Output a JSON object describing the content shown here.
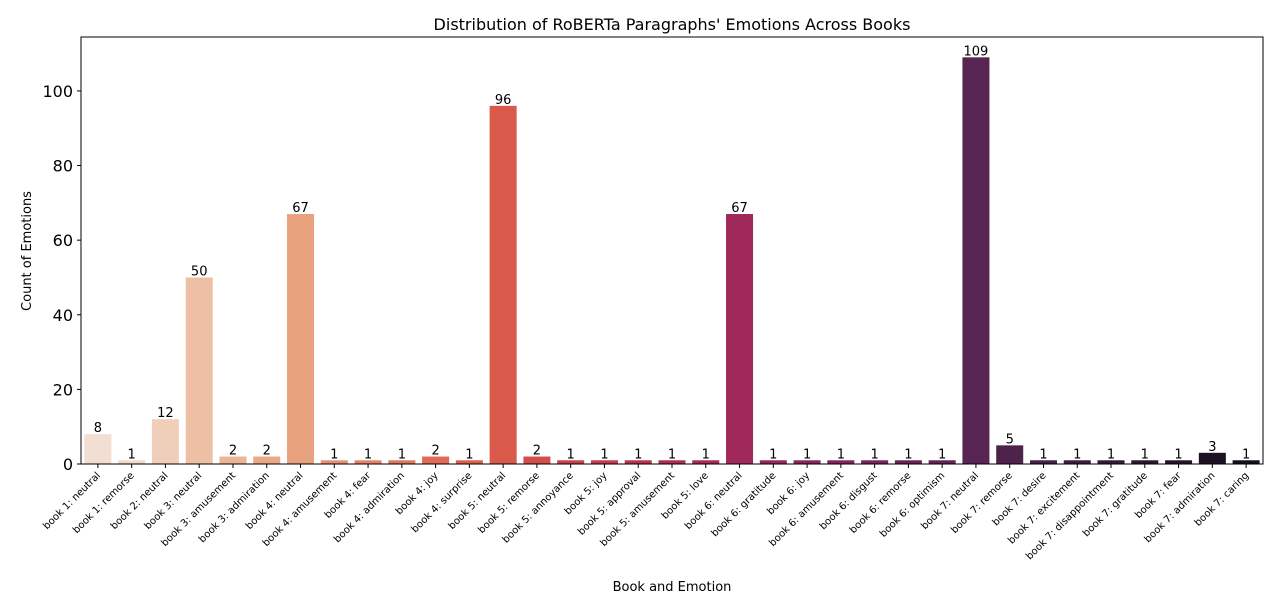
{
  "chart_data": {
    "type": "bar",
    "title": "Distribution of RoBERTa Paragraphs' Emotions Across Books",
    "xlabel": "Book and Emotion",
    "ylabel": "Count of Emotions",
    "ylim": [
      0,
      114.45
    ],
    "yticks": [
      0,
      20,
      40,
      60,
      80,
      100
    ],
    "grid": false,
    "categories": [
      "book 1: neutral",
      "book 1: remorse",
      "book 2: neutral",
      "book 3: neutral",
      "book 3: amusement",
      "book 3: admiration",
      "book 4: neutral",
      "book 4: amusement",
      "book 4: fear",
      "book 4: admiration",
      "book 4: joy",
      "book 4: surprise",
      "book 5: neutral",
      "book 5: remorse",
      "book 5: annoyance",
      "book 5: joy",
      "book 5: approval",
      "book 5: amusement",
      "book 5: love",
      "book 6: neutral",
      "book 6: gratitude",
      "book 6: joy",
      "book 6: amusement",
      "book 6: disgust",
      "book 6: remorse",
      "book 6: optimism",
      "book 7: neutral",
      "book 7: remorse",
      "book 7: desire",
      "book 7: excitement",
      "book 7: disappointment",
      "book 7: gratitude",
      "book 7: fear",
      "book 7: admiration",
      "book 7: caring"
    ],
    "values": [
      8,
      1,
      12,
      50,
      2,
      2,
      67,
      1,
      1,
      1,
      2,
      1,
      96,
      2,
      1,
      1,
      1,
      1,
      1,
      67,
      1,
      1,
      1,
      1,
      1,
      1,
      109,
      5,
      1,
      1,
      1,
      1,
      1,
      3,
      1
    ],
    "colors": [
      "#f2ded3",
      "#f1dacd",
      "#efcfb9",
      "#edc0a6",
      "#ecb496",
      "#eba98a",
      "#e9a27e",
      "#e69074",
      "#e58468",
      "#e2775f",
      "#e06a55",
      "#dd604f",
      "#d9594a",
      "#d24d4c",
      "#c9414b",
      "#c33b4c",
      "#b9324f",
      "#b02d52",
      "#a92957",
      "#a0285a",
      "#96265c",
      "#8b265d",
      "#82255e",
      "#78245c",
      "#6d2358",
      "#632355",
      "#582451",
      "#4e234b",
      "#442145",
      "#3b1e3e",
      "#341a37",
      "#2b1830",
      "#24152a",
      "#1d1224",
      "#160e1c"
    ]
  }
}
